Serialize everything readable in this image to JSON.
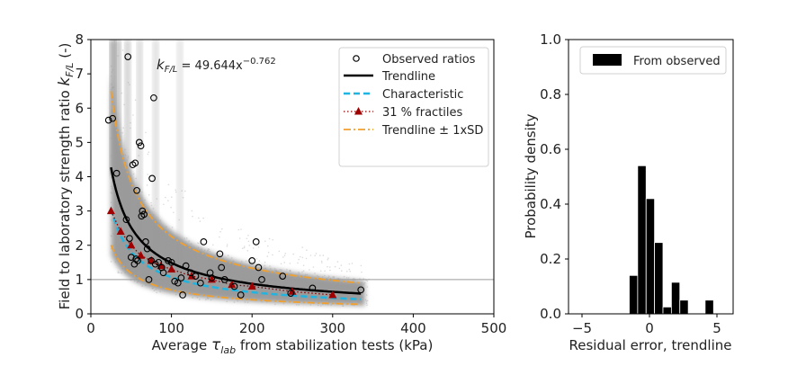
{
  "chart_data": [
    {
      "type": "scatter",
      "panel": "left",
      "title": "",
      "xlabel_prefix": "Average ",
      "xlabel_symbol": "τ",
      "xlabel_sub": "lab",
      "xlabel_suffix": " from stabilization tests (kPa)",
      "ylabel_prefix": "Field to laboratory strength ratio ",
      "ylabel_symbol": "k",
      "ylabel_sub": "F/L",
      "ylabel_suffix": " (-)",
      "xlim": [
        0,
        500
      ],
      "ylim": [
        0,
        8
      ],
      "xticks": [
        0,
        100,
        200,
        300,
        400,
        500
      ],
      "yticks": [
        0,
        1,
        2,
        3,
        4,
        5,
        6,
        7,
        8
      ],
      "reference_line_y": 1,
      "equation": {
        "lhs_symbol": "k",
        "lhs_sub": "F/L",
        "rhs": " = 49.644x",
        "exponent": "−0.762"
      },
      "trend_coef": 49.644,
      "trend_exp": -0.762,
      "trend_x_range": [
        25,
        335
      ],
      "sd_factor_upper": 1.52,
      "sd_factor_lower": 0.47,
      "characteristic_factor": 0.72,
      "legend_position": "top-right",
      "legend": [
        {
          "label": "Observed ratios",
          "marker": "circle"
        },
        {
          "label": "Trendline",
          "style": "solid",
          "color": "#000000"
        },
        {
          "label": "Characteristic",
          "style": "dashed",
          "color": "#1fb5e0"
        },
        {
          "label": "31 % fractiles",
          "style": "dotted-triangle",
          "color": "#8b0000"
        },
        {
          "label": "Trendline ± 1xSD",
          "style": "dashdot",
          "color": "#f0a030"
        }
      ],
      "series": [
        {
          "name": "Observed ratios",
          "points": [
            [
              22,
              5.65
            ],
            [
              27,
              5.7
            ],
            [
              32,
              4.1
            ],
            [
              46,
              7.5
            ],
            [
              44,
              2.75
            ],
            [
              48,
              2.2
            ],
            [
              50,
              1.65
            ],
            [
              52,
              4.35
            ],
            [
              55,
              4.4
            ],
            [
              57,
              3.6
            ],
            [
              60,
              5.0
            ],
            [
              62,
              4.9
            ],
            [
              64,
              3.0
            ],
            [
              66,
              2.9
            ],
            [
              63,
              2.85
            ],
            [
              68,
              2.1
            ],
            [
              58,
              1.55
            ],
            [
              54,
              1.45
            ],
            [
              56,
              1.6
            ],
            [
              70,
              1.9
            ],
            [
              72,
              1.0
            ],
            [
              75,
              1.55
            ],
            [
              78,
              6.3
            ],
            [
              76,
              3.95
            ],
            [
              80,
              1.45
            ],
            [
              84,
              1.5
            ],
            [
              88,
              1.35
            ],
            [
              90,
              1.2
            ],
            [
              96,
              1.55
            ],
            [
              100,
              1.5
            ],
            [
              104,
              0.95
            ],
            [
              108,
              0.9
            ],
            [
              112,
              1.05
            ],
            [
              114,
              0.55
            ],
            [
              118,
              1.4
            ],
            [
              124,
              1.2
            ],
            [
              130,
              1.1
            ],
            [
              136,
              0.9
            ],
            [
              140,
              2.1
            ],
            [
              148,
              1.2
            ],
            [
              150,
              1.05
            ],
            [
              160,
              1.75
            ],
            [
              162,
              1.35
            ],
            [
              166,
              1.0
            ],
            [
              178,
              0.8
            ],
            [
              186,
              0.55
            ],
            [
              200,
              1.55
            ],
            [
              205,
              2.1
            ],
            [
              208,
              1.35
            ],
            [
              212,
              1.0
            ],
            [
              238,
              1.1
            ],
            [
              248,
              0.6
            ],
            [
              275,
              0.75
            ],
            [
              335,
              0.7
            ]
          ]
        },
        {
          "name": "31 % fractiles",
          "points": [
            [
              25,
              3.0
            ],
            [
              37,
              2.4
            ],
            [
              50,
              2.0
            ],
            [
              62,
              1.7
            ],
            [
              75,
              1.55
            ],
            [
              87,
              1.4
            ],
            [
              100,
              1.3
            ],
            [
              125,
              1.1
            ],
            [
              150,
              1.0
            ],
            [
              175,
              0.85
            ],
            [
              200,
              0.8
            ],
            [
              250,
              0.65
            ],
            [
              300,
              0.55
            ]
          ]
        }
      ]
    },
    {
      "type": "bar",
      "panel": "right",
      "title": "",
      "xlabel": "Residual error, trendline",
      "ylabel": "Probability density",
      "xlim": [
        -6.0,
        6.2
      ],
      "ylim": [
        0.0,
        1.0
      ],
      "xticks": [
        -5,
        0,
        5
      ],
      "yticks": [
        "0.0",
        "0.2",
        "0.4",
        "0.6",
        "0.8",
        "1.0"
      ],
      "legend_position": "top-right",
      "legend": [
        {
          "label": "From observed",
          "color": "#000000"
        }
      ],
      "bin_width": 0.625,
      "bins": [
        {
          "start": -1.5,
          "value": 0.14
        },
        {
          "start": -0.875,
          "value": 0.54
        },
        {
          "start": -0.25,
          "value": 0.42
        },
        {
          "start": 0.375,
          "value": 0.26
        },
        {
          "start": 1.0,
          "value": 0.025
        },
        {
          "start": 1.625,
          "value": 0.115
        },
        {
          "start": 2.25,
          "value": 0.05
        },
        {
          "start": 2.875,
          "value": 0.0
        },
        {
          "start": 3.5,
          "value": 0.0
        },
        {
          "start": 4.125,
          "value": 0.05
        }
      ]
    }
  ]
}
